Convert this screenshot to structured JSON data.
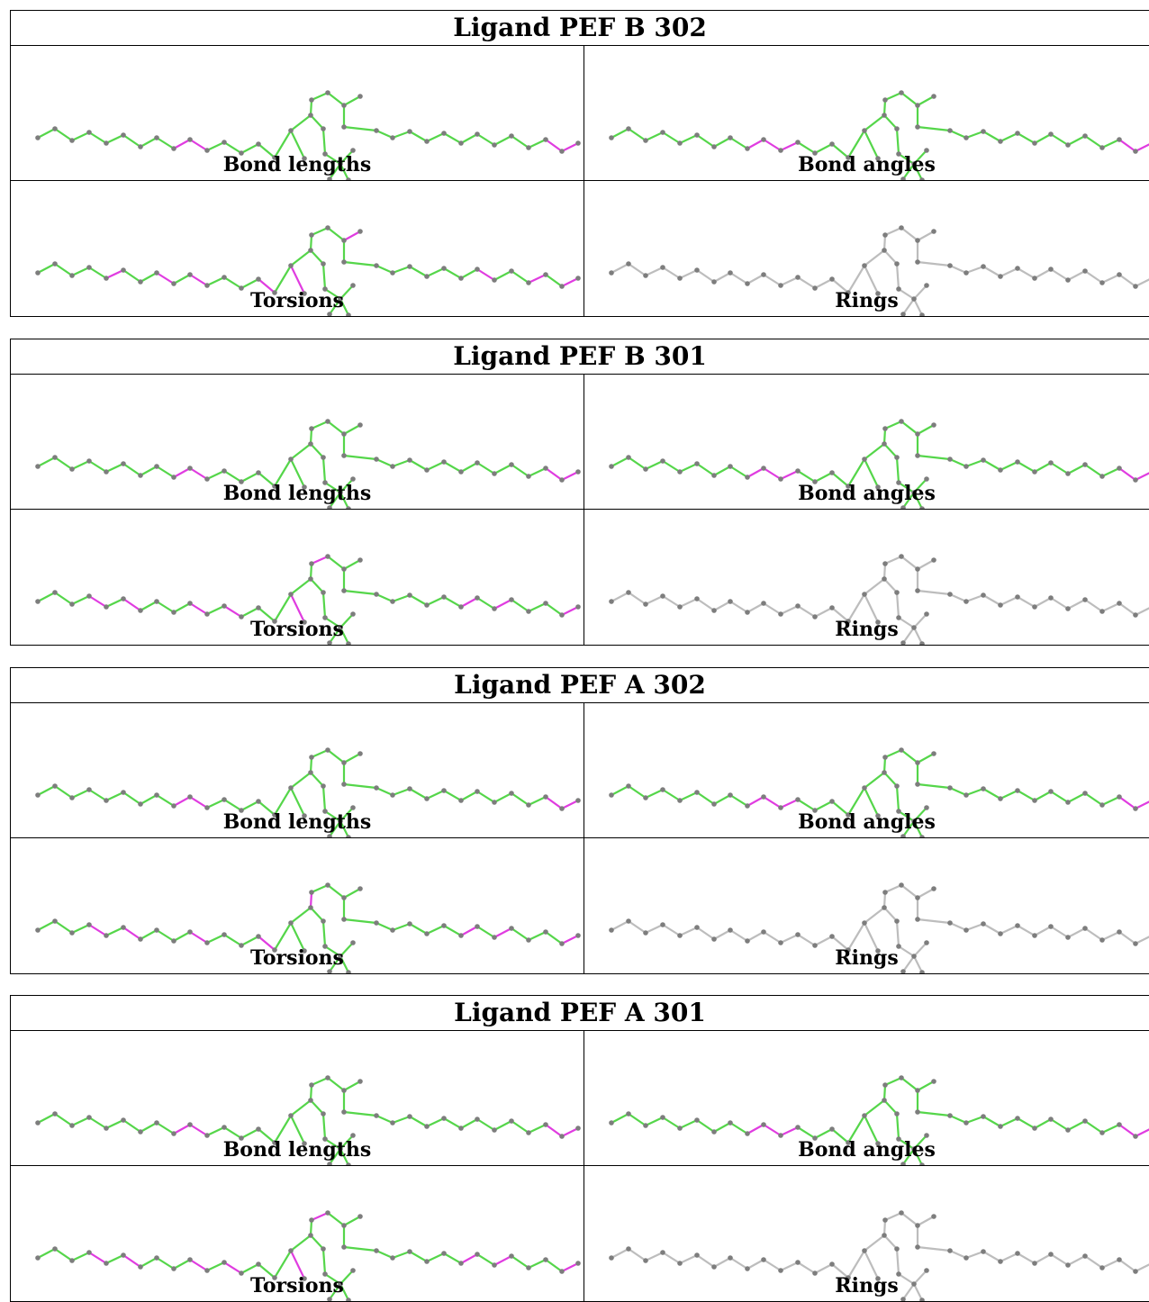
{
  "colors": {
    "ok": "#55d64a",
    "outlier": "#e03ce0",
    "neutral": "#bdbdbd",
    "atom": "#7d7d7d"
  },
  "panels": [
    {
      "title": "Ligand PEF B 302",
      "cells": [
        {
          "label": "Bond lengths",
          "mode": "bonds",
          "outliers": [
            8,
            9
          ]
        },
        {
          "label": "Bond angles",
          "mode": "angles",
          "outliers": [
            8,
            9,
            10
          ]
        },
        {
          "label": "Torsions",
          "mode": "torsions",
          "outliers": [
            4,
            7,
            9,
            13,
            15,
            20
          ]
        },
        {
          "label": "Rings",
          "mode": "rings",
          "outliers": []
        }
      ]
    },
    {
      "title": "Ligand PEF B 301",
      "cells": [
        {
          "label": "Bond lengths",
          "mode": "bonds",
          "outliers": [
            8,
            9
          ]
        },
        {
          "label": "Bond angles",
          "mode": "angles",
          "outliers": [
            8,
            9,
            10
          ]
        },
        {
          "label": "Torsions",
          "mode": "torsions",
          "outliers": [
            3,
            5,
            9,
            11,
            15,
            18
          ]
        },
        {
          "label": "Rings",
          "mode": "rings",
          "outliers": []
        }
      ]
    },
    {
      "title": "Ligand PEF A 302",
      "cells": [
        {
          "label": "Bond lengths",
          "mode": "bonds",
          "outliers": [
            8,
            9
          ]
        },
        {
          "label": "Bond angles",
          "mode": "angles",
          "outliers": [
            8,
            9,
            10
          ]
        },
        {
          "label": "Torsions",
          "mode": "torsions",
          "outliers": [
            3,
            5,
            9,
            13,
            17
          ]
        },
        {
          "label": "Rings",
          "mode": "rings",
          "outliers": []
        }
      ]
    },
    {
      "title": "Ligand PEF A 301",
      "cells": [
        {
          "label": "Bond lengths",
          "mode": "bonds",
          "outliers": [
            8,
            9
          ]
        },
        {
          "label": "Bond angles",
          "mode": "angles",
          "outliers": [
            8,
            9,
            10
          ]
        },
        {
          "label": "Torsions",
          "mode": "torsions",
          "outliers": [
            3,
            5,
            9,
            11,
            15,
            18
          ]
        },
        {
          "label": "Rings",
          "mode": "rings",
          "outliers": []
        }
      ]
    }
  ]
}
